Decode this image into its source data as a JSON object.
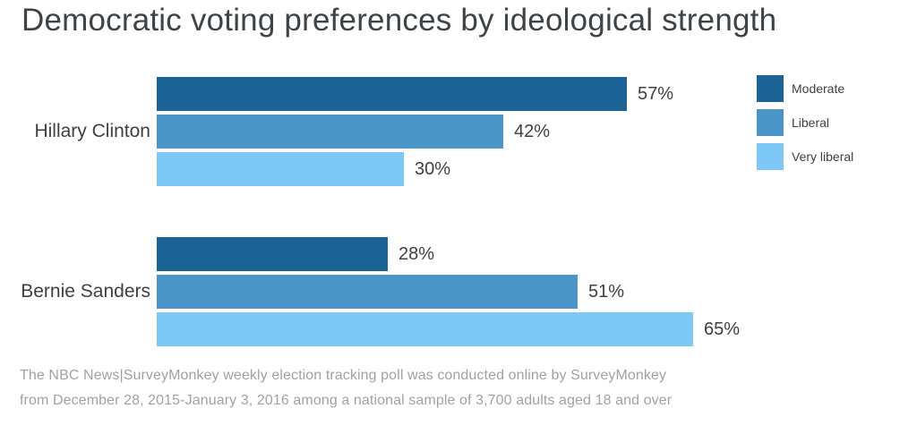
{
  "title": "Democratic voting preferences by ideological strength",
  "chart_data": {
    "type": "bar",
    "orientation": "horizontal",
    "title": "Democratic voting preferences by ideological strength",
    "categories": [
      "Hillary Clinton",
      "Bernie Sanders"
    ],
    "series": [
      {
        "name": "Moderate",
        "color": "#1a6394",
        "values": [
          57,
          28
        ]
      },
      {
        "name": "Liberal",
        "color": "#4a94c8",
        "values": [
          42,
          51
        ]
      },
      {
        "name": "Very liberal",
        "color": "#7dc8f7",
        "values": [
          30,
          65
        ]
      }
    ],
    "unit": "%",
    "value_label_format": "{value}%",
    "xlim": [
      0,
      100
    ],
    "grid": false,
    "axes_visible": false,
    "legend_position": "top-right",
    "value_labels": {
      "Hillary Clinton": [
        "57%",
        "42%",
        "30%"
      ],
      "Bernie Sanders": [
        "28%",
        "51%",
        "65%"
      ]
    }
  },
  "legend": {
    "items": [
      {
        "label": "Moderate"
      },
      {
        "label": "Liberal"
      },
      {
        "label": "Very liberal"
      }
    ]
  },
  "footer": {
    "line1": "The NBC News|SurveyMonkey weekly election tracking poll was conducted online by SurveyMonkey",
    "line2": "from December 28, 2015-January 3, 2016 among a national sample of 3,700 adults aged 18 and over"
  },
  "colors": {
    "background": "#ffffff",
    "title_text": "#3e4348",
    "label_text": "#3d4144",
    "footnote_text": "#9fa2a5",
    "moderate": "#1a6394",
    "liberal": "#4a94c8",
    "very_liberal": "#7dc8f7"
  }
}
